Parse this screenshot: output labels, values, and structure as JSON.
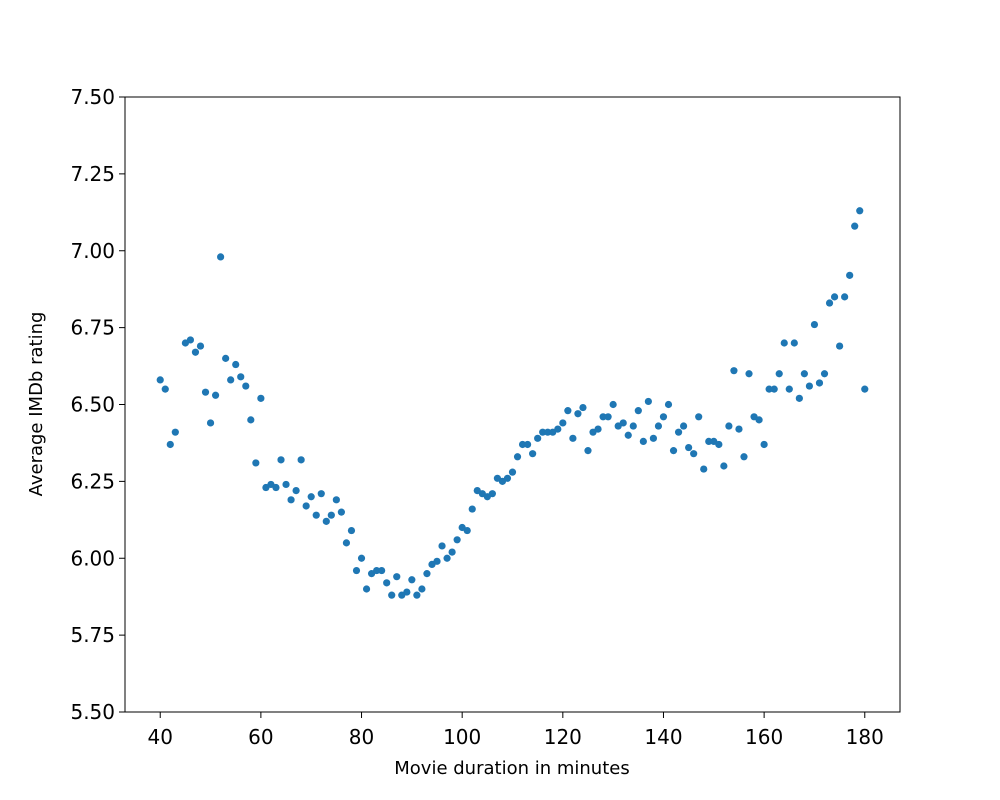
{
  "chart_data": {
    "type": "scatter",
    "xlabel": "Movie duration in minutes",
    "ylabel": "Average IMDb rating",
    "color": "#1f77b4",
    "xlim": [
      33,
      187
    ],
    "ylim": [
      5.5,
      7.5
    ],
    "xticks": [
      40,
      60,
      80,
      100,
      120,
      140,
      160,
      180
    ],
    "yticks": [
      {
        "value": 5.5,
        "label": "5.50"
      },
      {
        "value": 5.75,
        "label": "5.75"
      },
      {
        "value": 6,
        "label": "6.00"
      },
      {
        "value": 6.25,
        "label": "6.25"
      },
      {
        "value": 6.5,
        "label": "6.50"
      },
      {
        "value": 6.75,
        "label": "6.75"
      },
      {
        "value": 7,
        "label": "7.00"
      },
      {
        "value": 7.25,
        "label": "7.25"
      },
      {
        "value": 7.5,
        "label": "7.50"
      }
    ],
    "x": [
      40,
      41,
      42,
      43,
      45,
      46,
      47,
      48,
      49,
      50,
      51,
      52,
      53,
      54,
      55,
      56,
      57,
      58,
      59,
      60,
      61,
      62,
      63,
      64,
      65,
      66,
      67,
      68,
      69,
      70,
      71,
      72,
      73,
      74,
      75,
      76,
      77,
      78,
      79,
      80,
      81,
      82,
      83,
      84,
      85,
      86,
      87,
      88,
      89,
      90,
      91,
      92,
      93,
      94,
      95,
      96,
      97,
      98,
      99,
      100,
      101,
      102,
      103,
      104,
      105,
      106,
      107,
      108,
      109,
      110,
      111,
      112,
      113,
      114,
      115,
      116,
      117,
      118,
      119,
      120,
      121,
      122,
      123,
      124,
      125,
      126,
      127,
      128,
      129,
      130,
      131,
      132,
      133,
      134,
      135,
      136,
      137,
      138,
      139,
      140,
      141,
      142,
      143,
      144,
      145,
      146,
      147,
      148,
      149,
      150,
      151,
      152,
      153,
      154,
      155,
      156,
      157,
      158,
      159,
      160,
      161,
      162,
      163,
      164,
      165,
      166,
      167,
      168,
      169,
      170,
      171,
      172,
      173,
      174,
      175,
      176,
      177,
      178,
      179,
      180
    ],
    "values": [
      6.58,
      6.55,
      6.37,
      6.41,
      6.7,
      6.71,
      6.67,
      6.69,
      6.54,
      6.44,
      6.53,
      6.98,
      6.65,
      6.58,
      6.63,
      6.59,
      6.56,
      6.45,
      6.31,
      6.52,
      6.23,
      6.24,
      6.23,
      6.32,
      6.24,
      6.19,
      6.22,
      6.32,
      6.17,
      6.2,
      6.14,
      6.21,
      6.12,
      6.14,
      6.19,
      6.15,
      6.05,
      6.09,
      5.96,
      6.0,
      5.9,
      5.95,
      5.96,
      5.96,
      5.92,
      5.88,
      5.94,
      5.88,
      5.89,
      5.93,
      5.88,
      5.9,
      5.95,
      5.98,
      5.99,
      6.04,
      6.0,
      6.02,
      6.06,
      6.1,
      6.09,
      6.16,
      6.22,
      6.21,
      6.2,
      6.21,
      6.26,
      6.25,
      6.26,
      6.28,
      6.33,
      6.37,
      6.37,
      6.34,
      6.39,
      6.41,
      6.41,
      6.41,
      6.42,
      6.44,
      6.48,
      6.39,
      6.47,
      6.49,
      6.35,
      6.41,
      6.42,
      6.46,
      6.46,
      6.5,
      6.43,
      6.44,
      6.4,
      6.43,
      6.48,
      6.38,
      6.51,
      6.39,
      6.43,
      6.46,
      6.5,
      6.35,
      6.41,
      6.43,
      6.36,
      6.34,
      6.46,
      6.29,
      6.38,
      6.38,
      6.37,
      6.3,
      6.43,
      6.61,
      6.42,
      6.33,
      6.6,
      6.46,
      6.45,
      6.37,
      6.55,
      6.55,
      6.6,
      6.7,
      6.55,
      6.7,
      6.52,
      6.6,
      6.56,
      6.76,
      6.57,
      6.6,
      6.83,
      6.85,
      6.69,
      6.85,
      6.92,
      7.08,
      7.13,
      6.55
    ]
  }
}
